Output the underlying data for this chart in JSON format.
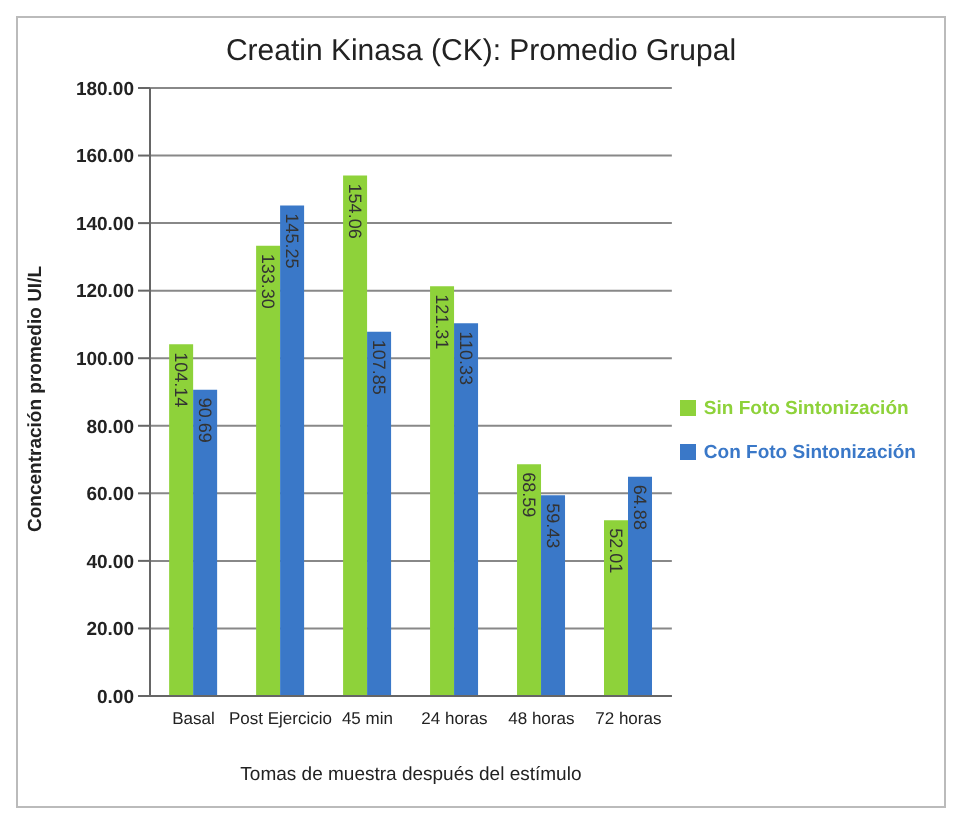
{
  "chart_data": {
    "type": "bar",
    "title": "Creatin Kinasa (CK): Promedio Grupal",
    "xlabel": "Tomas de muestra después del estímulo",
    "ylabel": "Concentración promedio UI/L",
    "categories": [
      "Basal",
      "Post Ejercicio",
      "45 min",
      "24 horas",
      "48 horas",
      "72 horas"
    ],
    "series": [
      {
        "name": "Sin Foto Sintonización",
        "color": "#8ed23a",
        "values": [
          104.14,
          133.3,
          154.06,
          121.31,
          68.59,
          52.01
        ],
        "value_labels": [
          "104.14",
          "133.30",
          "154.06",
          "121.31",
          "68.59",
          "52.01"
        ]
      },
      {
        "name": "Con Foto Sintonización",
        "color": "#3a78c8",
        "values": [
          90.69,
          145.25,
          107.85,
          110.33,
          59.43,
          64.88
        ],
        "value_labels": [
          "90.69",
          "145.25",
          "107.85",
          "110.33",
          "59.43",
          "64.88"
        ]
      }
    ],
    "ylim": [
      0,
      180
    ],
    "yticks": [
      {
        "value": 0,
        "label": "0.00"
      },
      {
        "value": 20,
        "label": "20.00"
      },
      {
        "value": 40,
        "label": "40.00"
      },
      {
        "value": 60,
        "label": "60.00"
      },
      {
        "value": 80,
        "label": "80.00"
      },
      {
        "value": 100,
        "label": "100.00"
      },
      {
        "value": 120,
        "label": "120.00"
      },
      {
        "value": 140,
        "label": "140.00"
      },
      {
        "value": 160,
        "label": "160.00"
      },
      {
        "value": 180,
        "label": "180.00"
      }
    ],
    "grid": "y",
    "legend": "right"
  }
}
